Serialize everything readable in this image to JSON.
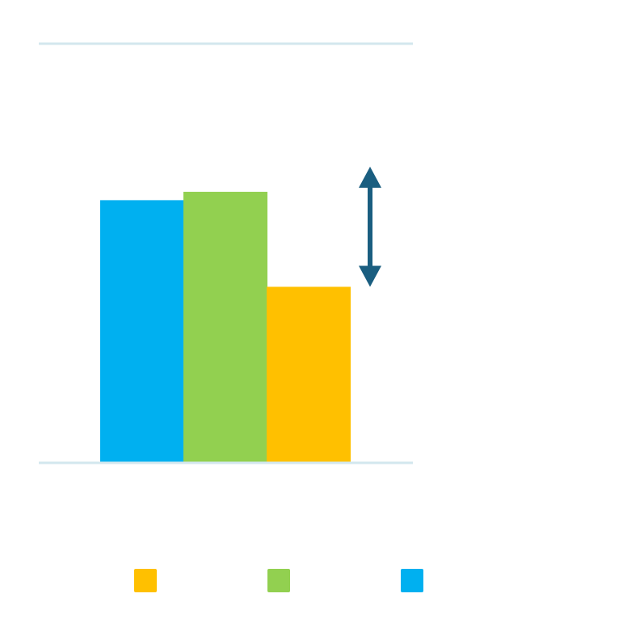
{
  "chart_data": {
    "type": "bar",
    "title": "",
    "xlabel": "",
    "ylabel": "",
    "categories": [
      ""
    ],
    "series": [
      {
        "color": "#00B0F0",
        "values": [
          0.94
        ]
      },
      {
        "color": "#92D050",
        "values": [
          0.97
        ]
      },
      {
        "color": "#FFC000",
        "values": [
          0.63
        ]
      }
    ],
    "ylim": [
      0,
      1.5
    ],
    "gridlines": [
      1.5
    ],
    "grid": true,
    "legend_position": "bottom",
    "legend_order": [
      2,
      1,
      0
    ],
    "annotation": {
      "type": "double-arrow",
      "color": "#1A5E80",
      "from": 0.63,
      "to": 1.06
    }
  },
  "colors": {
    "axis_line": "#D3E7EE",
    "arrow": "#1A5E80"
  }
}
